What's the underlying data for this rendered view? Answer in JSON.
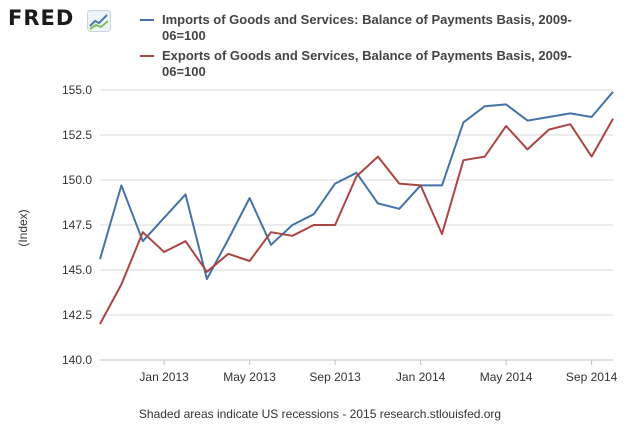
{
  "logo": {
    "text": "FRED",
    "mark_icon": "chart-line-icon"
  },
  "chart_data": {
    "type": "line",
    "title": "",
    "xlabel": "",
    "ylabel": "(Index)",
    "ylim": [
      140.0,
      155.0
    ],
    "yticks": [
      "155.0",
      "152.5",
      "150.0",
      "147.5",
      "145.0",
      "142.5",
      "140.0"
    ],
    "ytick_values": [
      155.0,
      152.5,
      150.0,
      147.5,
      145.0,
      142.5,
      140.0
    ],
    "x": [
      "2012-10",
      "2012-11",
      "2012-12",
      "2013-01",
      "2013-02",
      "2013-03",
      "2013-04",
      "2013-05",
      "2013-06",
      "2013-07",
      "2013-08",
      "2013-09",
      "2013-10",
      "2013-11",
      "2013-12",
      "2014-01",
      "2014-02",
      "2014-03",
      "2014-04",
      "2014-05",
      "2014-06",
      "2014-07",
      "2014-08",
      "2014-09",
      "2014-10"
    ],
    "xticks": [
      {
        "label": "Jan 2013",
        "at": "2013-01"
      },
      {
        "label": "May 2013",
        "at": "2013-05"
      },
      {
        "label": "Sep 2013",
        "at": "2013-09"
      },
      {
        "label": "Jan 2014",
        "at": "2014-01"
      },
      {
        "label": "May 2014",
        "at": "2014-05"
      },
      {
        "label": "Sep 2014",
        "at": "2014-09"
      }
    ],
    "grid": "horizontal",
    "legend_position": "top",
    "series": [
      {
        "name": "Imports of Goods and Services: Balance of Payments Basis, 2009-06=100",
        "color": "#4572a7",
        "values": [
          145.6,
          149.7,
          146.6,
          147.9,
          149.2,
          144.5,
          146.7,
          149.0,
          146.4,
          147.5,
          148.1,
          149.8,
          150.4,
          148.7,
          148.4,
          149.7,
          149.7,
          153.2,
          154.1,
          154.2,
          153.3,
          153.5,
          153.7,
          153.5,
          154.9
        ]
      },
      {
        "name": "Exports of Goods and Services, Balance of Payments Basis, 2009-06=100",
        "color": "#aa4643",
        "values": [
          142.0,
          144.2,
          147.1,
          146.0,
          146.6,
          144.9,
          145.9,
          145.5,
          147.1,
          146.9,
          147.5,
          147.5,
          150.2,
          151.3,
          149.8,
          149.7,
          147.0,
          151.1,
          151.3,
          153.0,
          151.7,
          152.8,
          153.1,
          151.3,
          153.4
        ]
      }
    ]
  },
  "footer": {
    "text": "Shaded areas indicate US recessions - 2015 research.stlouisfed.org"
  }
}
